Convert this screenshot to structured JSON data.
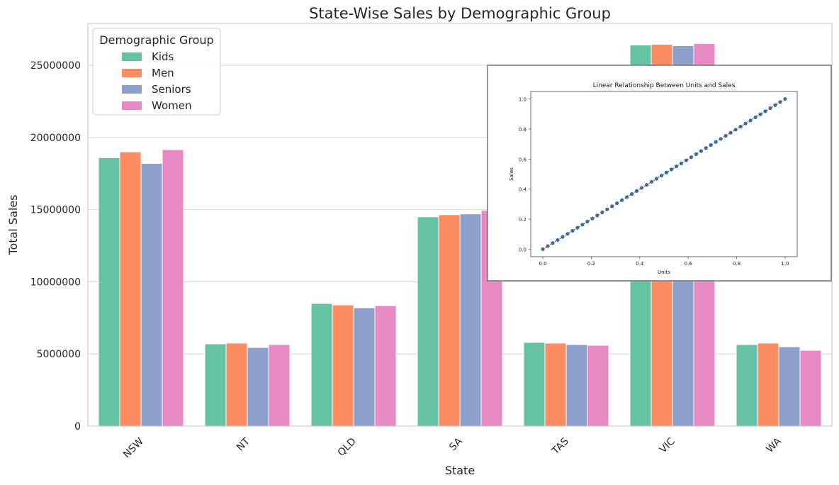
{
  "chart_data": [
    {
      "type": "bar",
      "title": "State-Wise Sales by Demographic Group",
      "xlabel": "State",
      "ylabel": "Total Sales",
      "categories": [
        "NSW",
        "NT",
        "QLD",
        "SA",
        "TAS",
        "VIC",
        "WA"
      ],
      "series": [
        {
          "name": "Kids",
          "color": "#66c2a5",
          "values": [
            18600000,
            5700000,
            8500000,
            14500000,
            5800000,
            26400000,
            5650000
          ]
        },
        {
          "name": "Men",
          "color": "#fc8d62",
          "values": [
            19000000,
            5750000,
            8400000,
            14650000,
            5750000,
            26450000,
            5750000
          ]
        },
        {
          "name": "Seniors",
          "color": "#8da0cb",
          "values": [
            18200000,
            5450000,
            8200000,
            14700000,
            5650000,
            26350000,
            5500000
          ]
        },
        {
          "name": "Women",
          "color": "#e78ac3",
          "values": [
            19150000,
            5650000,
            8350000,
            14950000,
            5600000,
            26500000,
            5250000
          ]
        }
      ],
      "ylim": [
        0,
        27900000
      ],
      "yticks": [
        0,
        5000000,
        10000000,
        15000000,
        20000000,
        25000000
      ],
      "ytick_labels": [
        "0",
        "5000000",
        "10000000",
        "15000000",
        "20000000",
        "25000000"
      ],
      "grid": "horizontal",
      "legend": {
        "title": "Demographic Group",
        "position": "top-left"
      }
    },
    {
      "type": "scatter",
      "title": "Linear Relationship Between Units and Sales",
      "xlabel": "Units",
      "ylabel": "Sales",
      "xlim": [
        -0.05,
        1.05
      ],
      "ylim": [
        -0.05,
        1.05
      ],
      "xticks": [
        0.0,
        0.2,
        0.4,
        0.6,
        0.8,
        1.0
      ],
      "yticks": [
        0.0,
        0.2,
        0.4,
        0.6,
        0.8,
        1.0
      ],
      "tick_labels": [
        "0.0",
        "0.2",
        "0.4",
        "0.6",
        "0.8",
        "1.0"
      ],
      "point_count": 50,
      "point_color": "#1f77b4",
      "line_color": "#d62728",
      "x_start": 0,
      "x_end": 1,
      "slope": 1,
      "intercept": 0,
      "position": "top-right"
    }
  ]
}
